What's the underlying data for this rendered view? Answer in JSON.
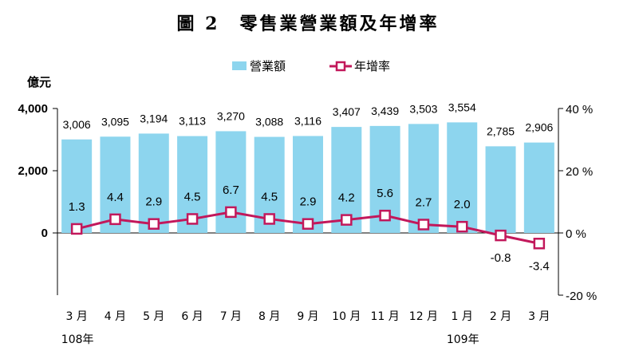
{
  "figure": {
    "title": "圖 2　零售業營業額及年增率",
    "unit_left": "億元"
  },
  "chart_data": {
    "type": "bar+line",
    "title": "圖 2　零售業營業額及年增率",
    "categories": [
      "3 月",
      "4 月",
      "5 月",
      "6 月",
      "7 月",
      "8 月",
      "9 月",
      "10 月",
      "11 月",
      "12 月",
      "1 月",
      "2 月",
      "3 月"
    ],
    "year_labels": [
      {
        "index": 0,
        "label": "108年"
      },
      {
        "index": 10,
        "label": "109年"
      }
    ],
    "series": [
      {
        "name": "營業額",
        "type": "bar",
        "axis": "left",
        "color": "#8dd5ee",
        "values": [
          3006,
          3095,
          3194,
          3113,
          3270,
          3088,
          3116,
          3407,
          3439,
          3503,
          3554,
          2785,
          2906
        ],
        "labels": [
          "3,006",
          "3,095",
          "3,194",
          "3,113",
          "3,270",
          "3,088",
          "3,116",
          "3,407",
          "3,439",
          "3,503",
          "3,554",
          "2,785",
          "2,906"
        ]
      },
      {
        "name": "年增率",
        "type": "line",
        "axis": "right",
        "color": "#c2185b",
        "marker": "hollow-square",
        "values": [
          1.3,
          4.4,
          2.9,
          4.5,
          6.7,
          4.5,
          2.9,
          4.2,
          5.6,
          2.7,
          2.0,
          -0.8,
          -3.4
        ],
        "labels": [
          "1.3",
          "4.4",
          "2.9",
          "4.5",
          "6.7",
          "4.5",
          "2.9",
          "4.2",
          "5.6",
          "2.7",
          "2.0",
          "-0.8",
          "-3.4"
        ]
      }
    ],
    "y_left": {
      "ylim": [
        -2000,
        4000
      ],
      "ticks": [
        4000,
        2000,
        0
      ],
      "tick_labels": [
        "4,000",
        "2,000",
        "0"
      ]
    },
    "y_right": {
      "ylim": [
        -20,
        40
      ],
      "ticks": [
        40,
        20,
        0,
        -20
      ],
      "tick_labels": [
        "40 %",
        "20 %",
        "0 %",
        "-20 %"
      ]
    },
    "legend": {
      "position": "top",
      "entries": [
        "營業額",
        "年增率"
      ]
    },
    "grid": false
  }
}
